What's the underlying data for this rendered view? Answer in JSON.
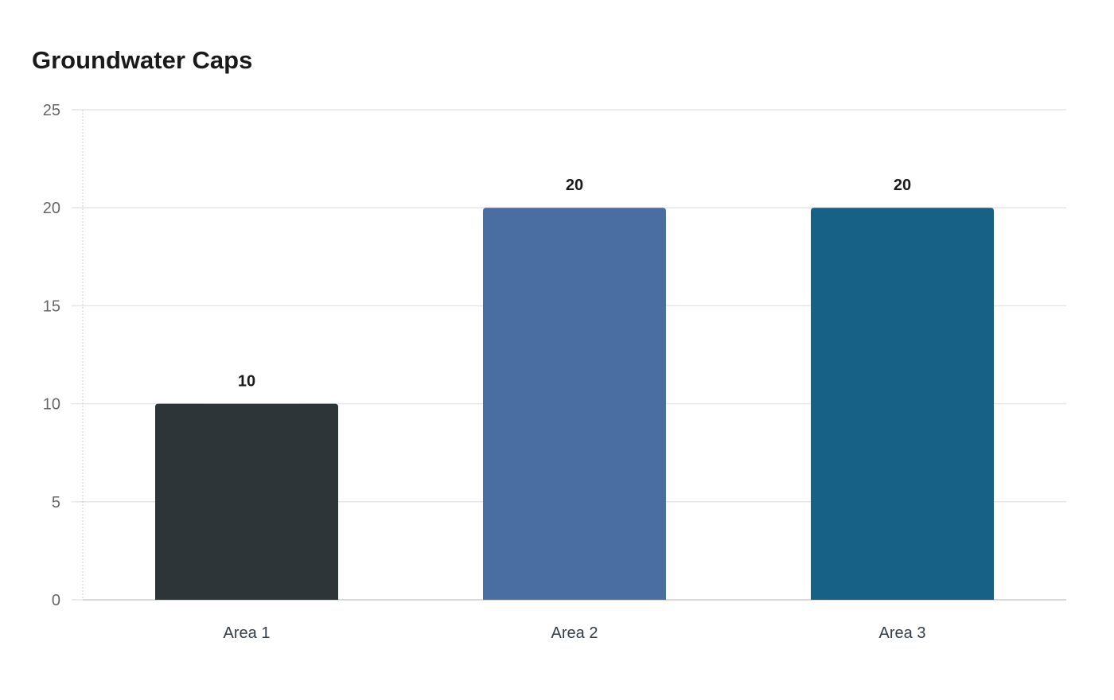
{
  "chart_data": {
    "type": "bar",
    "title": "Groundwater Caps",
    "xlabel": "",
    "ylabel": "",
    "categories": [
      "Area 1",
      "Area 2",
      "Area 3"
    ],
    "values": [
      10,
      20,
      20
    ],
    "value_labels": [
      "10",
      "20",
      "20"
    ],
    "bar_colors": [
      "#2e3538",
      "#4a6da2",
      "#176086"
    ],
    "ylim": [
      0,
      25
    ],
    "yticks": [
      0,
      5,
      10,
      15,
      20,
      25
    ],
    "ytick_labels": [
      "0",
      "5",
      "10",
      "15",
      "20",
      "25"
    ],
    "grid": true,
    "legend": "none"
  }
}
